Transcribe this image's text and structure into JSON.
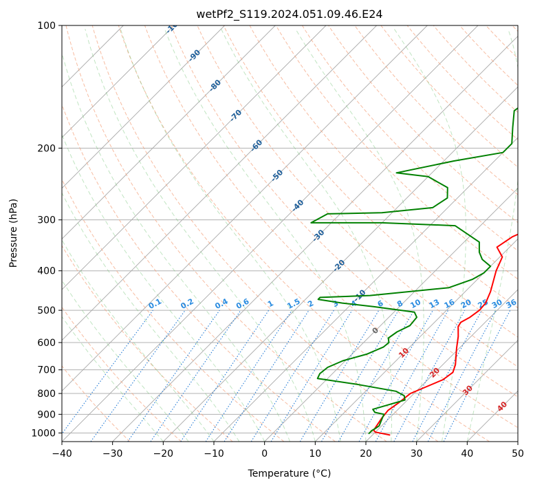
{
  "chart_data": {
    "type": "line",
    "title": "wetPf2_S119.2024.051.09.46.E24",
    "xlabel": "Temperature (°C)",
    "ylabel": "Pressure (hPa)",
    "xlim": [
      -40,
      50
    ],
    "ylim": [
      1050,
      100
    ],
    "y_scale": "log",
    "grid": true,
    "x_ticks": [
      -40,
      -30,
      -20,
      -10,
      0,
      10,
      20,
      30,
      40,
      50
    ],
    "y_ticks": [
      100,
      200,
      300,
      400,
      500,
      600,
      700,
      800,
      900,
      1000
    ],
    "x_tick_labels": [
      "−40",
      "−30",
      "−20",
      "−10",
      "0",
      "10",
      "20",
      "30",
      "40",
      "50"
    ],
    "y_tick_labels": [
      "100",
      "200",
      "300",
      "400",
      "500",
      "600",
      "700",
      "800",
      "900",
      "1000"
    ],
    "series": [
      {
        "color": "#ff0000",
        "points": [
          [
            23.5,
            1012
          ],
          [
            20,
            995
          ],
          [
            19.3,
            985
          ],
          [
            19,
            960
          ],
          [
            18.5,
            920
          ],
          [
            18.2,
            880
          ],
          [
            18.8,
            845
          ],
          [
            19.3,
            800
          ],
          [
            20.5,
            780
          ],
          [
            23,
            740
          ],
          [
            23.5,
            710
          ],
          [
            22.5,
            680
          ],
          [
            19.5,
            620
          ],
          [
            17.5,
            580
          ],
          [
            15.5,
            548
          ],
          [
            15.2,
            535
          ],
          [
            16,
            520
          ],
          [
            16.5,
            500
          ],
          [
            16.3,
            480
          ],
          [
            15,
            450
          ],
          [
            12,
            400
          ],
          [
            10.5,
            370
          ],
          [
            7.5,
            350
          ],
          [
            8.5,
            330
          ],
          [
            12,
            305
          ],
          [
            13,
            290
          ],
          [
            10,
            265
          ],
          [
            10.5,
            250
          ],
          [
            11,
            225
          ],
          [
            7.5,
            200
          ],
          [
            3,
            170
          ],
          [
            1.5,
            150
          ],
          [
            -0.5,
            135
          ],
          [
            -0.5,
            120
          ],
          [
            3.5,
            108
          ],
          [
            3,
            100
          ]
        ]
      },
      {
        "color": "#008000",
        "points": [
          [
            19,
            1005
          ],
          [
            19,
            985
          ],
          [
            19.3,
            975
          ],
          [
            19.5,
            960
          ],
          [
            18.5,
            915
          ],
          [
            18.2,
            900
          ],
          [
            16,
            890
          ],
          [
            15,
            875
          ],
          [
            17,
            855
          ],
          [
            19.5,
            830
          ],
          [
            18.5,
            810
          ],
          [
            16,
            790
          ],
          [
            7,
            760
          ],
          [
            -2,
            735
          ],
          [
            -2.5,
            715
          ],
          [
            -2.2,
            690
          ],
          [
            -0.5,
            665
          ],
          [
            3,
            640
          ],
          [
            4.8,
            615
          ],
          [
            5,
            600
          ],
          [
            4,
            585
          ],
          [
            4.5,
            565
          ],
          [
            5.8,
            545
          ],
          [
            5.5,
            520
          ],
          [
            4,
            505
          ],
          [
            -5,
            490
          ],
          [
            -12,
            480
          ],
          [
            -17.5,
            470
          ],
          [
            -17.5,
            465
          ],
          [
            -8,
            460
          ],
          [
            6,
            440
          ],
          [
            9,
            420
          ],
          [
            10,
            405
          ],
          [
            10,
            390
          ],
          [
            7,
            375
          ],
          [
            5,
            360
          ],
          [
            3,
            340
          ],
          [
            -5,
            310
          ],
          [
            -20,
            305
          ],
          [
            -34,
            305
          ],
          [
            -32.5,
            290
          ],
          [
            -22,
            288
          ],
          [
            -13,
            280
          ],
          [
            -12,
            265
          ],
          [
            -14,
            250
          ],
          [
            -20,
            235
          ],
          [
            -27,
            230
          ],
          [
            -18,
            215
          ],
          [
            -10,
            205
          ],
          [
            -10,
            195
          ],
          [
            -13,
            178
          ],
          [
            -16,
            162
          ],
          [
            -15,
            148
          ],
          [
            -12,
            130
          ],
          [
            -9,
            115
          ],
          [
            -5.5,
            105
          ],
          [
            -4,
            100
          ]
        ]
      }
    ],
    "isotherm_labels": [
      "-100",
      "-90",
      "-80",
      "-70",
      "-60",
      "-50",
      "-40",
      "-30",
      "-20",
      "-10",
      "0",
      "10",
      "20",
      "30",
      "40"
    ],
    "mixing_ratio_labels": [
      "0.1",
      "0.2",
      "0.4",
      "0.6",
      "1",
      "1.5",
      "2",
      "3",
      "4",
      "6",
      "8",
      "10",
      "13",
      "16",
      "20",
      "25",
      "30",
      "36"
    ]
  }
}
